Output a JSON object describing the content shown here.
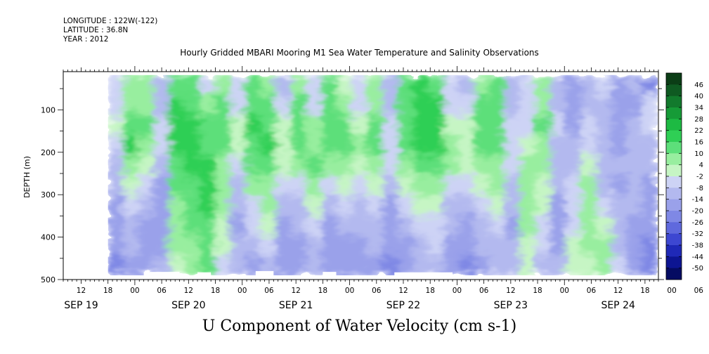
{
  "header": {
    "longitude": "LONGITUDE : 122W(-122)",
    "latitude": "LATITUDE : 36.8N",
    "year": "YEAR : 2012"
  },
  "chart_data": {
    "type": "heatmap",
    "title": "Hourly Gridded MBARI Mooring M1 Sea Water Temperature and Salinity Observations",
    "variable_label": "U Component of Water Velocity (cm s-1)",
    "ylabel": "DEPTH (m)",
    "ylim": [
      500,
      10
    ],
    "y_ticks": [
      "100",
      "200",
      "300",
      "400",
      "500"
    ],
    "x_range": [
      "SEP 19 08:00",
      "SEP 24 21:00"
    ],
    "x_hour_ticks": [
      "12",
      "18",
      "00",
      "06",
      "12",
      "18",
      "00",
      "06",
      "12",
      "18",
      "00",
      "06",
      "12",
      "18",
      "00",
      "06",
      "12",
      "18",
      "00",
      "06",
      "12",
      "18",
      "00",
      "06",
      "12",
      "18"
    ],
    "x_day_labels": [
      "SEP 19",
      "SEP 20",
      "SEP 21",
      "SEP 22",
      "SEP 23",
      "SEP 24"
    ],
    "data_start": "SEP 19 18:00",
    "depth_range_m": [
      18,
      490
    ],
    "colorbar": {
      "levels": [
        "46",
        "40",
        "34",
        "28",
        "22",
        "16",
        "10",
        "4",
        "-2",
        "-8",
        "-14",
        "-20",
        "-26",
        "-32",
        "-38",
        "-44",
        "-50"
      ],
      "colors": [
        "#0b3d16",
        "#0f5a22",
        "#127a2d",
        "#169b37",
        "#1dba43",
        "#2fcf55",
        "#5ddf7a",
        "#98ee9f",
        "#c6f5c4",
        "#cdd3f5",
        "#b3b9ef",
        "#9aa1ea",
        "#7f88e5",
        "#5f69dd",
        "#3d47d1",
        "#1f29b7",
        "#0d1592",
        "#050b62"
      ]
    },
    "field_pattern": [
      [
        -6,
        8,
        6,
        -10,
        14,
        12,
        -4,
        10,
        -6,
        12,
        8,
        -8,
        10,
        -6,
        12,
        4,
        -6,
        8,
        -10,
        12,
        18,
        16,
        -4,
        -8,
        10,
        12,
        -10,
        -6,
        8,
        -12,
        -14,
        -10,
        -6,
        -16,
        -12,
        -20
      ],
      [
        -4,
        10,
        8,
        -8,
        18,
        16,
        6,
        12,
        -4,
        14,
        12,
        -4,
        12,
        -4,
        14,
        8,
        -4,
        10,
        -8,
        14,
        20,
        18,
        -2,
        -6,
        12,
        14,
        -8,
        -4,
        10,
        -10,
        -16,
        -8,
        -8,
        -18,
        -14,
        -6
      ],
      [
        2,
        16,
        12,
        -4,
        20,
        18,
        12,
        16,
        4,
        18,
        16,
        2,
        14,
        6,
        16,
        12,
        2,
        12,
        -4,
        16,
        22,
        20,
        4,
        2,
        14,
        16,
        -4,
        -2,
        12,
        -6,
        -14,
        -4,
        -10,
        -16,
        -12,
        -4
      ],
      [
        -2,
        18,
        10,
        -6,
        18,
        20,
        16,
        14,
        2,
        16,
        18,
        4,
        12,
        10,
        12,
        14,
        6,
        14,
        -2,
        14,
        20,
        22,
        8,
        4,
        12,
        14,
        -2,
        4,
        10,
        -8,
        -12,
        -2,
        -12,
        -14,
        -10,
        -8
      ],
      [
        -8,
        10,
        4,
        -10,
        16,
        18,
        18,
        10,
        -2,
        12,
        14,
        2,
        6,
        12,
        6,
        10,
        4,
        10,
        -6,
        10,
        14,
        16,
        6,
        2,
        8,
        10,
        -6,
        6,
        8,
        -10,
        -8,
        4,
        -10,
        -12,
        -8,
        -12
      ],
      [
        -12,
        4,
        -6,
        -14,
        12,
        16,
        20,
        8,
        -8,
        6,
        10,
        -6,
        -4,
        10,
        -6,
        2,
        -2,
        4,
        -10,
        4,
        8,
        10,
        -2,
        -6,
        4,
        6,
        -10,
        8,
        4,
        -12,
        -6,
        8,
        -8,
        -14,
        -10,
        -14
      ],
      [
        -14,
        -4,
        -12,
        -16,
        10,
        14,
        18,
        6,
        -12,
        -2,
        6,
        -10,
        -10,
        4,
        -12,
        -4,
        -8,
        -2,
        -14,
        -4,
        2,
        4,
        -8,
        -12,
        -4,
        2,
        -12,
        10,
        2,
        -14,
        -4,
        10,
        -4,
        -12,
        -12,
        -16
      ],
      [
        -16,
        -8,
        -14,
        -18,
        8,
        12,
        16,
        4,
        -14,
        -6,
        2,
        -14,
        -12,
        -2,
        -14,
        -10,
        -12,
        -8,
        -16,
        -10,
        -4,
        -2,
        -12,
        -16,
        -8,
        -4,
        -14,
        8,
        -2,
        -16,
        -2,
        8,
        2,
        -10,
        -14,
        -18
      ],
      [
        -18,
        -12,
        -16,
        -14,
        6,
        10,
        14,
        2,
        -12,
        -10,
        -4,
        -16,
        -14,
        -8,
        -16,
        -14,
        -14,
        -12,
        -18,
        -14,
        -8,
        -6,
        -14,
        -18,
        -12,
        -8,
        -12,
        4,
        -6,
        -14,
        2,
        6,
        6,
        -8,
        -16,
        -20
      ],
      [
        -22,
        -16,
        -18,
        -10,
        4,
        8,
        12,
        -2,
        -10,
        -14,
        -8,
        -18,
        -16,
        -12,
        -18,
        -16,
        -16,
        -14,
        -20,
        -16,
        -10,
        -10,
        -16,
        -20,
        -14,
        -12,
        -10,
        2,
        -8,
        -12,
        4,
        4,
        8,
        -6,
        -18,
        -24
      ]
    ]
  }
}
